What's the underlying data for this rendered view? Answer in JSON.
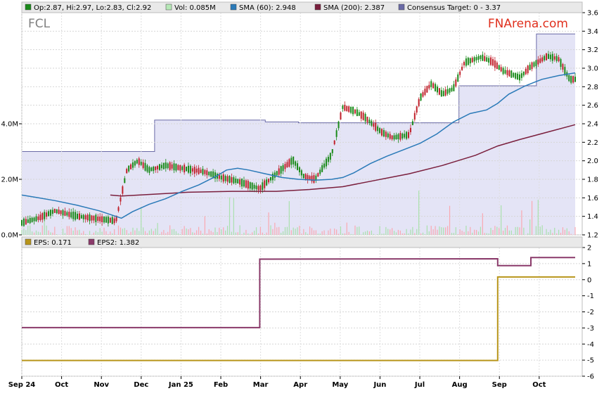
{
  "ticker": "FCL",
  "brand": "FNArena.com",
  "legend_top": [
    {
      "label": "Op:2.87, Hi:2.97, Lo:2.83, Cl:2.92",
      "color": "#1a8a1a"
    },
    {
      "label": "Vol: 0.085M",
      "color": "#b6e8b6"
    },
    {
      "label": "SMA (60): 2.948",
      "color": "#2a7ab8"
    },
    {
      "label": "SMA (200): 2.387",
      "color": "#7a1f3d"
    },
    {
      "label": "Consensus Target: 0 - 3.37",
      "color": "#6a6aa6"
    }
  ],
  "legend_bottom": [
    {
      "label": "EPS: 0.171",
      "color": "#b8951a"
    },
    {
      "label": "EPS2: 1.382",
      "color": "#8a3a6a"
    }
  ],
  "colors": {
    "up": "#1a8a1a",
    "down": "#c0202a",
    "sma60": "#2a7ab8",
    "sma200": "#7a1f3d",
    "target_fill": "#e4e4f6",
    "target_line": "#6a6aa6",
    "eps": "#b8951a",
    "eps2": "#8a3a6a",
    "volume": "#ff9aa0"
  },
  "chart_data": {
    "type": "line",
    "price_panel": {
      "y_ticks": [
        "1.2",
        "1.4",
        "1.6",
        "1.8",
        "2.0",
        "2.2",
        "2.4",
        "2.6",
        "2.8",
        "3.0",
        "3.2",
        "3.4",
        "3.6"
      ],
      "ylim": [
        1.2,
        3.6
      ],
      "volume_ticks": [
        "0.0M",
        "2.0M",
        "4.0M"
      ],
      "volume_lim": [
        0,
        8
      ],
      "x_labels": [
        "Sep 24",
        "Oct",
        "Nov",
        "Dec",
        "Jan 25",
        "Feb",
        "Mar",
        "Apr",
        "May",
        "Jun",
        "Jul",
        "Aug",
        "Sep",
        "Oct"
      ],
      "sma60": [
        [
          0.0,
          1.63
        ],
        [
          0.03,
          1.6
        ],
        [
          0.06,
          1.57
        ],
        [
          0.1,
          1.52
        ],
        [
          0.14,
          1.46
        ],
        [
          0.17,
          1.4
        ],
        [
          0.18,
          1.38
        ],
        [
          0.2,
          1.45
        ],
        [
          0.23,
          1.53
        ],
        [
          0.26,
          1.59
        ],
        [
          0.29,
          1.67
        ],
        [
          0.32,
          1.74
        ],
        [
          0.35,
          1.83
        ],
        [
          0.37,
          1.9
        ],
        [
          0.39,
          1.92
        ],
        [
          0.41,
          1.9
        ],
        [
          0.44,
          1.86
        ],
        [
          0.47,
          1.82
        ],
        [
          0.5,
          1.8
        ],
        [
          0.53,
          1.79
        ],
        [
          0.56,
          1.8
        ],
        [
          0.58,
          1.82
        ],
        [
          0.6,
          1.87
        ],
        [
          0.63,
          1.97
        ],
        [
          0.66,
          2.05
        ],
        [
          0.69,
          2.12
        ],
        [
          0.72,
          2.19
        ],
        [
          0.75,
          2.29
        ],
        [
          0.78,
          2.42
        ],
        [
          0.81,
          2.51
        ],
        [
          0.84,
          2.55
        ],
        [
          0.86,
          2.62
        ],
        [
          0.88,
          2.72
        ],
        [
          0.91,
          2.81
        ],
        [
          0.94,
          2.88
        ],
        [
          0.97,
          2.92
        ],
        [
          1.0,
          2.95
        ]
      ],
      "sma200": [
        [
          0.16,
          1.63
        ],
        [
          0.18,
          1.62
        ],
        [
          0.24,
          1.64
        ],
        [
          0.3,
          1.66
        ],
        [
          0.38,
          1.67
        ],
        [
          0.46,
          1.67
        ],
        [
          0.52,
          1.69
        ],
        [
          0.58,
          1.72
        ],
        [
          0.64,
          1.79
        ],
        [
          0.7,
          1.86
        ],
        [
          0.76,
          1.95
        ],
        [
          0.82,
          2.06
        ],
        [
          0.86,
          2.16
        ],
        [
          0.9,
          2.23
        ],
        [
          0.95,
          2.31
        ],
        [
          1.0,
          2.39
        ]
      ],
      "target_steps": [
        [
          0.0,
          2.1
        ],
        [
          0.24,
          2.1
        ],
        [
          0.24,
          2.44
        ],
        [
          0.44,
          2.44
        ],
        [
          0.44,
          2.42
        ],
        [
          0.5,
          2.42
        ],
        [
          0.5,
          2.41
        ],
        [
          0.79,
          2.41
        ],
        [
          0.79,
          2.81
        ],
        [
          0.93,
          2.81
        ],
        [
          0.93,
          3.37
        ],
        [
          1.0,
          3.37
        ]
      ],
      "candles_anchors": [
        [
          0.0,
          1.33
        ],
        [
          0.03,
          1.38
        ],
        [
          0.06,
          1.46
        ],
        [
          0.1,
          1.4
        ],
        [
          0.13,
          1.38
        ],
        [
          0.17,
          1.35
        ],
        [
          0.19,
          1.9
        ],
        [
          0.21,
          2.0
        ],
        [
          0.23,
          1.9
        ],
        [
          0.26,
          1.95
        ],
        [
          0.29,
          1.92
        ],
        [
          0.33,
          1.88
        ],
        [
          0.36,
          1.82
        ],
        [
          0.39,
          1.78
        ],
        [
          0.43,
          1.7
        ],
        [
          0.46,
          1.86
        ],
        [
          0.49,
          2.01
        ],
        [
          0.51,
          1.83
        ],
        [
          0.53,
          1.8
        ],
        [
          0.56,
          2.07
        ],
        [
          0.58,
          2.58
        ],
        [
          0.6,
          2.54
        ],
        [
          0.62,
          2.47
        ],
        [
          0.65,
          2.31
        ],
        [
          0.67,
          2.25
        ],
        [
          0.7,
          2.28
        ],
        [
          0.72,
          2.68
        ],
        [
          0.74,
          2.83
        ],
        [
          0.76,
          2.72
        ],
        [
          0.78,
          2.78
        ],
        [
          0.8,
          3.06
        ],
        [
          0.83,
          3.12
        ],
        [
          0.85,
          3.07
        ],
        [
          0.87,
          2.97
        ],
        [
          0.9,
          2.9
        ],
        [
          0.92,
          3.02
        ],
        [
          0.95,
          3.13
        ],
        [
          0.97,
          3.1
        ],
        [
          0.99,
          2.88
        ]
      ]
    },
    "eps_panel": {
      "y_ticks": [
        "-6",
        "-5",
        "-4",
        "-3",
        "-2",
        "-1",
        "0",
        "1",
        "2"
      ],
      "ylim": [
        -6,
        2
      ],
      "series": [
        {
          "name": "EPS",
          "steps": [
            [
              0.0,
              -5.02
            ],
            [
              0.86,
              -5.02
            ],
            [
              0.86,
              0.17
            ],
            [
              1.0,
              0.17
            ]
          ]
        },
        {
          "name": "EPS2",
          "steps": [
            [
              0.0,
              -2.98
            ],
            [
              0.43,
              -2.98
            ],
            [
              0.43,
              1.28
            ],
            [
              0.86,
              1.3
            ],
            [
              0.86,
              0.87
            ],
            [
              0.92,
              0.87
            ],
            [
              0.92,
              1.38
            ],
            [
              1.0,
              1.38
            ]
          ]
        }
      ]
    }
  }
}
